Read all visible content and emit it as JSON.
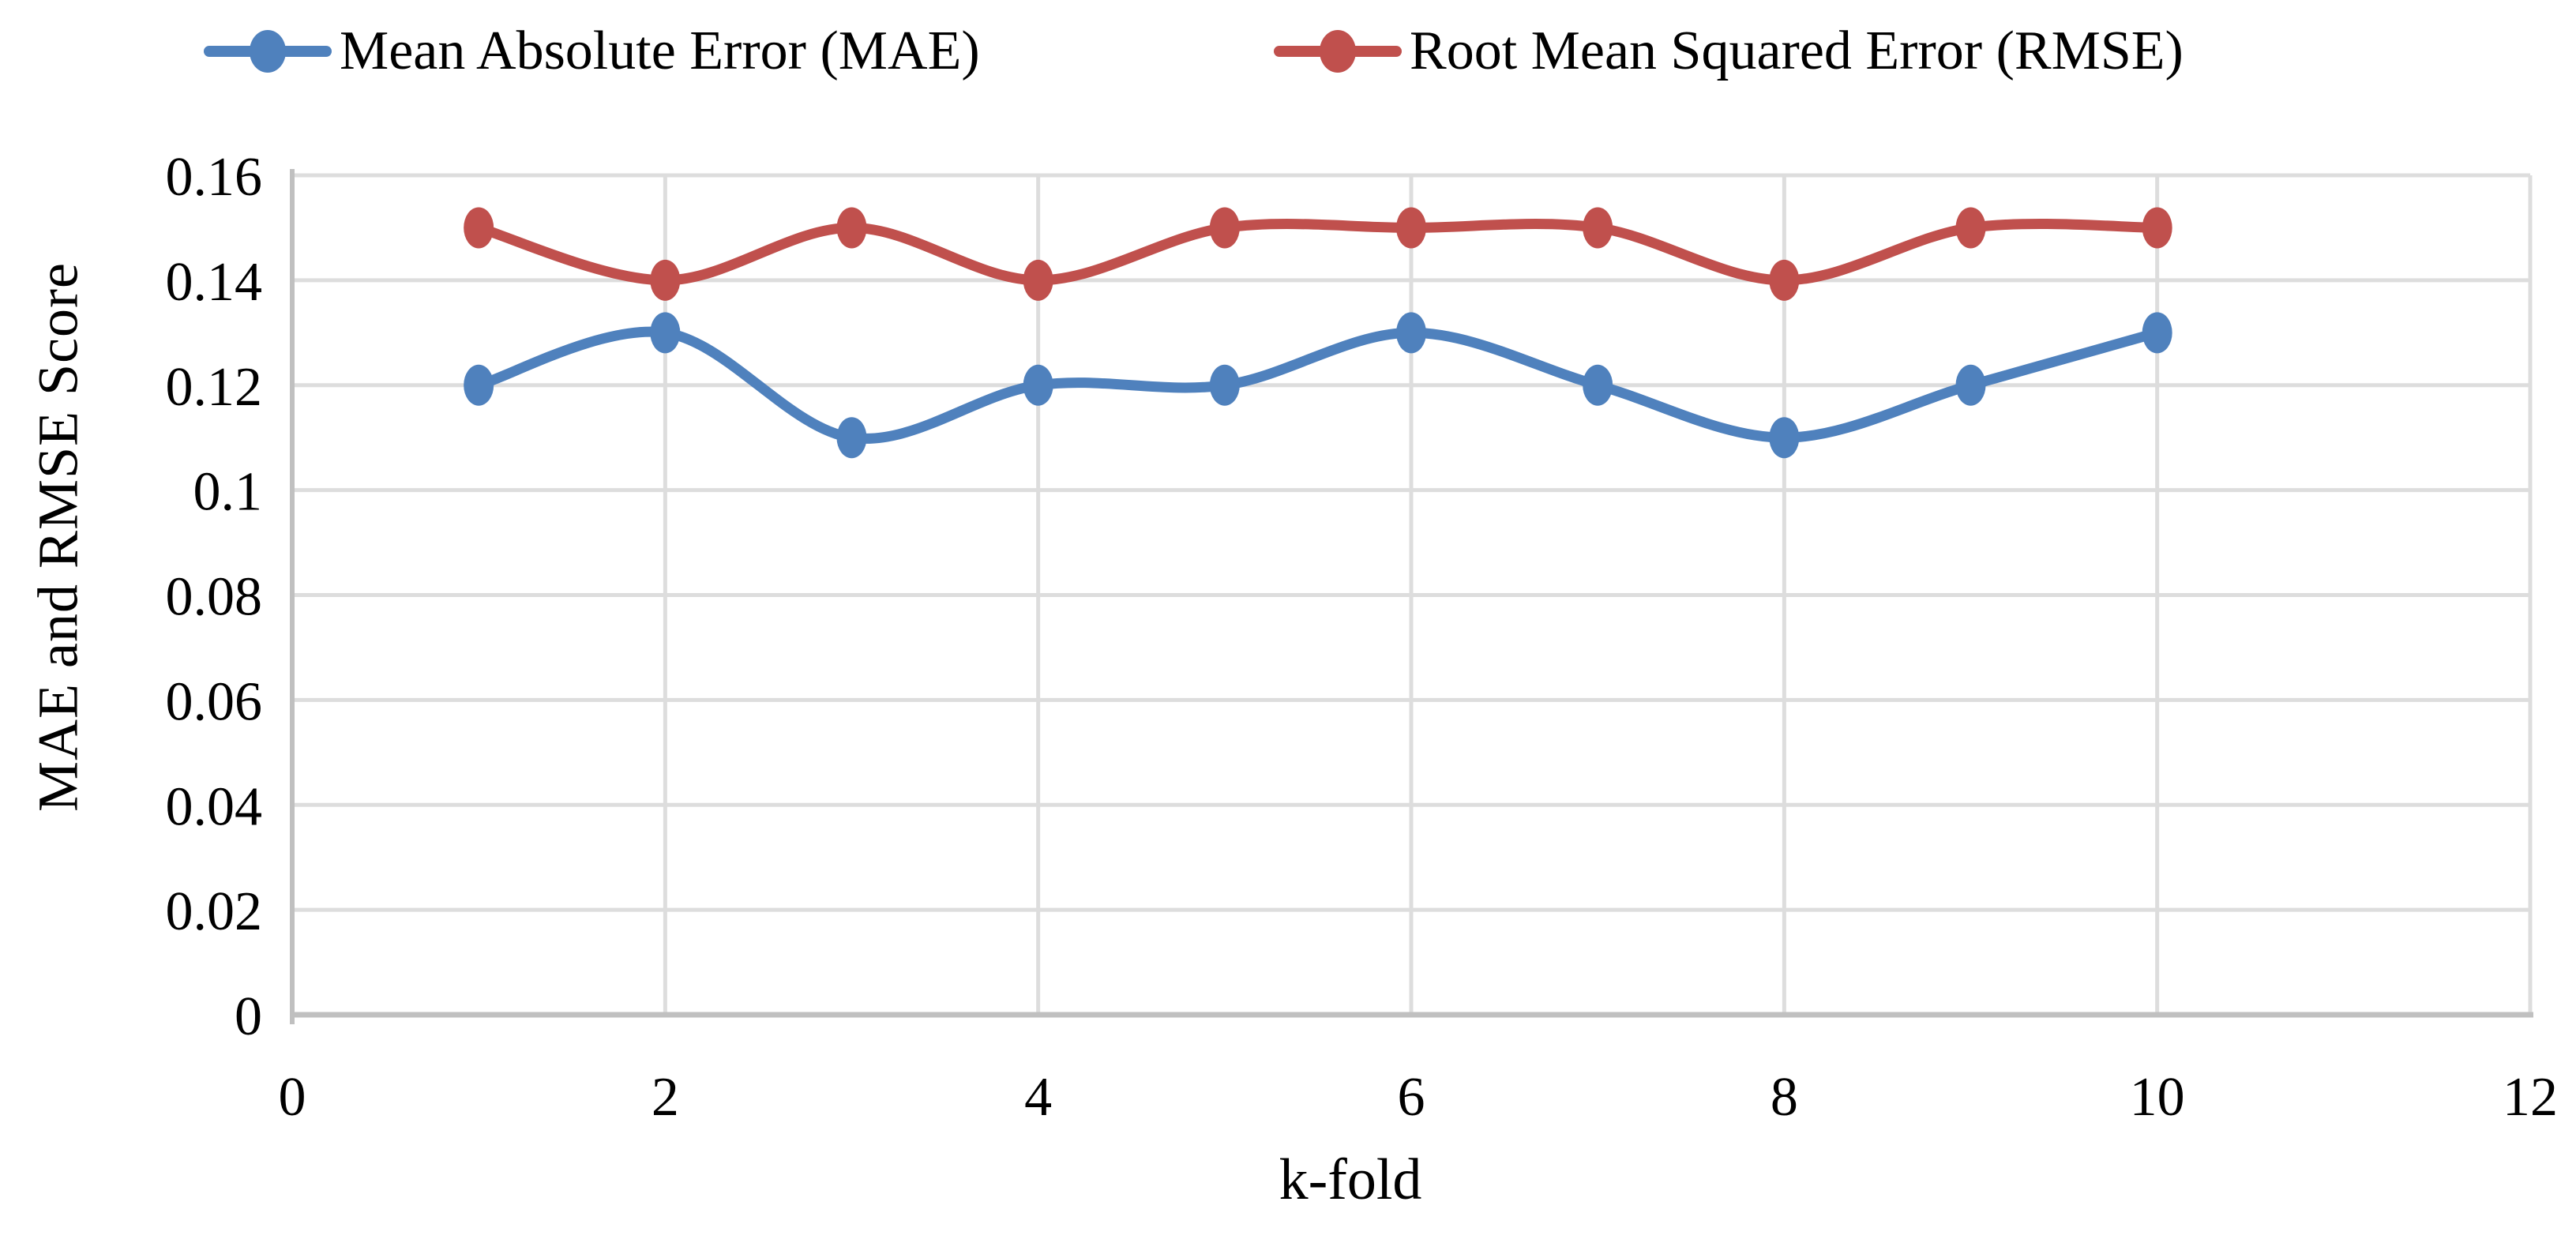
{
  "chart_data": {
    "type": "line",
    "title": "",
    "xlabel": "k-fold",
    "ylabel": "MAE and RMSE Score",
    "x": [
      1,
      2,
      3,
      4,
      5,
      6,
      7,
      8,
      9,
      10
    ],
    "series": [
      {
        "name": "Mean Absolute Error (MAE)",
        "color": "#4F81BD",
        "values": [
          0.12,
          0.13,
          0.11,
          0.12,
          0.12,
          0.13,
          0.12,
          0.11,
          0.12,
          0.13
        ]
      },
      {
        "name": "Root Mean Squared Error (RMSE)",
        "color": "#C0504D",
        "values": [
          0.15,
          0.14,
          0.15,
          0.14,
          0.15,
          0.15,
          0.15,
          0.14,
          0.15,
          0.15
        ]
      }
    ],
    "xlim": [
      0,
      12
    ],
    "ylim": [
      0,
      0.16
    ],
    "x_ticks": [
      "0",
      "2",
      "4",
      "6",
      "8",
      "10",
      "12"
    ],
    "x_tick_values": [
      0,
      2,
      4,
      6,
      8,
      10,
      12
    ],
    "y_ticks": [
      "0",
      "0.02",
      "0.04",
      "0.06",
      "0.08",
      "0.1",
      "0.12",
      "0.14",
      "0.16"
    ],
    "y_tick_values": [
      0,
      0.02,
      0.04,
      0.06,
      0.08,
      0.1,
      0.12,
      0.14,
      0.16
    ],
    "grid": true,
    "legend_position": "top",
    "smoothed_lines": true,
    "colors": {
      "grid": "#DDDDDD",
      "axis": "#C0C0C0",
      "text": "#000000",
      "background": "#FFFFFF"
    }
  }
}
